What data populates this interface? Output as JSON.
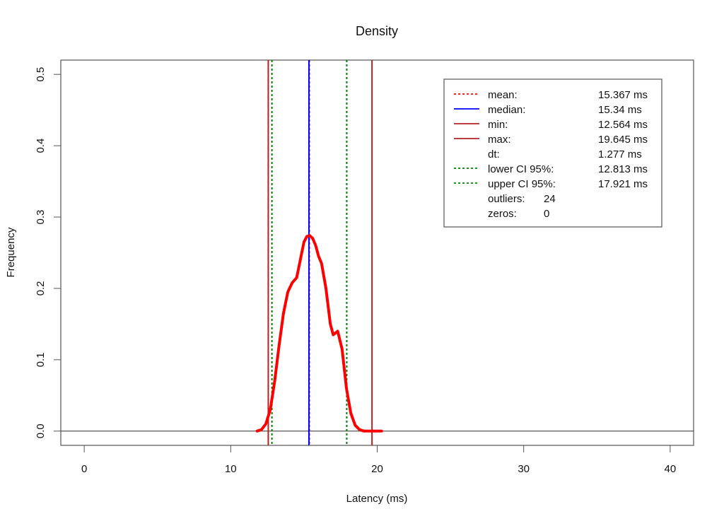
{
  "chart_data": {
    "type": "line",
    "title": "Density",
    "xlabel": "Latency (ms)",
    "ylabel": "Frequency",
    "xlim": [
      -1.6,
      41.6
    ],
    "ylim": [
      -0.02,
      0.52
    ],
    "x_ticks": [
      0,
      10,
      20,
      30,
      40
    ],
    "y_ticks": [
      0.0,
      0.1,
      0.2,
      0.3,
      0.4,
      0.5
    ],
    "x_tick_labels": [
      "0",
      "10",
      "20",
      "30",
      "40"
    ],
    "y_tick_labels": [
      "0.0",
      "0.1",
      "0.2",
      "0.3",
      "0.4",
      "0.5"
    ],
    "baseline_y": 0,
    "legend_position": "top-right",
    "series": [
      {
        "x": [
          11.8,
          12.1,
          12.4,
          12.7,
          13.0,
          13.3,
          13.6,
          13.9,
          14.2,
          14.5,
          14.8,
          15.0,
          15.2,
          15.4,
          15.6,
          15.8,
          16.0,
          16.2,
          16.5,
          16.8,
          17.0,
          17.3,
          17.6,
          17.9,
          18.2,
          18.5,
          18.8,
          19.1,
          19.4,
          19.7,
          20.0,
          20.3
        ],
        "y": [
          0.0,
          0.002,
          0.01,
          0.03,
          0.07,
          0.12,
          0.165,
          0.195,
          0.208,
          0.215,
          0.245,
          0.265,
          0.273,
          0.274,
          0.27,
          0.26,
          0.245,
          0.235,
          0.2,
          0.15,
          0.135,
          0.14,
          0.115,
          0.06,
          0.025,
          0.008,
          0.002,
          0.0,
          0.0,
          0.0,
          0.0,
          0.0
        ],
        "color": "#ff0000"
      }
    ],
    "reference_lines": [
      {
        "label": "mean:",
        "value_text": "15.367 ms",
        "x": 15.367,
        "color": "#ff0000",
        "style": "dotted"
      },
      {
        "label": "median:",
        "value_text": "15.34 ms",
        "x": 15.34,
        "color": "#0000ff",
        "style": "solid"
      },
      {
        "label": "min:",
        "value_text": "12.564 ms",
        "x": 12.564,
        "color": "#b22222",
        "style": "solid"
      },
      {
        "label": "max:",
        "value_text": "19.645 ms",
        "x": 19.645,
        "color": "#b22222",
        "style": "solid"
      },
      {
        "label": "lower CI 95%:",
        "value_text": "12.813 ms",
        "x": 12.813,
        "color": "#008000",
        "style": "dotted"
      },
      {
        "label": "upper CI 95%:",
        "value_text": "17.921 ms",
        "x": 17.921,
        "color": "#008000",
        "style": "dotted"
      }
    ],
    "legend": [
      {
        "label": "mean:",
        "value": "15.367 ms",
        "color": "#ff0000",
        "style": "dotted"
      },
      {
        "label": "median:",
        "value": "15.34 ms",
        "color": "#0000ff",
        "style": "solid"
      },
      {
        "label": "min:",
        "value": "12.564 ms",
        "color": "#b22222",
        "style": "solid"
      },
      {
        "label": "max:",
        "value": "19.645 ms",
        "color": "#b22222",
        "style": "solid"
      },
      {
        "label": "dt:",
        "value": "1.277 ms",
        "color": "",
        "style": "none"
      },
      {
        "label": "lower CI 95%:",
        "value": "12.813 ms",
        "color": "#008000",
        "style": "dotted"
      },
      {
        "label": "upper CI 95%:",
        "value": "17.921 ms",
        "color": "#008000",
        "style": "dotted"
      },
      {
        "label": "outliers:",
        "value": "24",
        "color": "",
        "style": "none"
      },
      {
        "label": "zeros:",
        "value": "0",
        "color": "",
        "style": "none"
      }
    ]
  }
}
